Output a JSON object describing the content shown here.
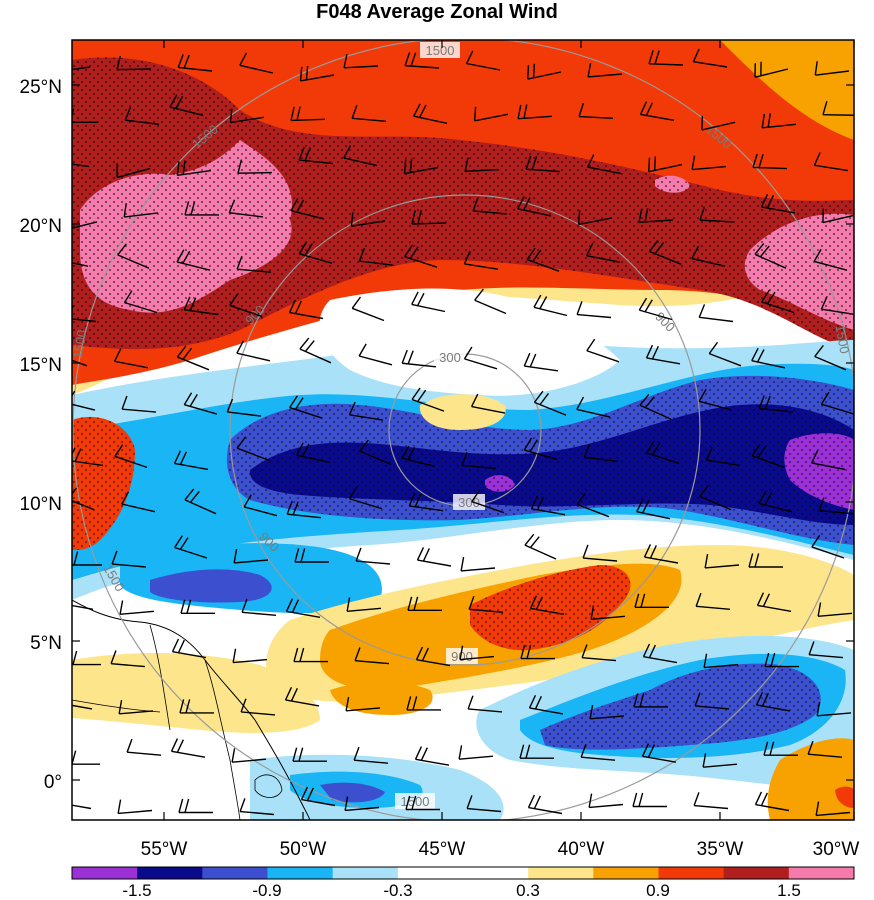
{
  "title": "F048 Average Zonal Wind",
  "colors": {
    "ring": "#9a9a9a",
    "barb": "#000000",
    "coast": "#000000",
    "levels": [
      "#9b30d6",
      "#0a0a8c",
      "#3c4fcf",
      "#19b5f5",
      "#a9e2f8",
      "#ffffff",
      "#ffffff",
      "#fde58c",
      "#f7a200",
      "#f23a08",
      "#b01e1e",
      "#f47bac"
    ]
  },
  "map": {
    "lon_ticks": [
      "55°W",
      "50°W",
      "45°W",
      "40°W",
      "35°W",
      "30°W"
    ],
    "lat_ticks": [
      "25°N",
      "20°N",
      "15°N",
      "10°N",
      "5°N",
      "0°"
    ],
    "range_rings": [
      {
        "label": "300"
      },
      {
        "label": "300"
      },
      {
        "label": "900"
      },
      {
        "label": "900"
      },
      {
        "label": "900"
      },
      {
        "label": "900"
      },
      {
        "label": "1500"
      },
      {
        "label": "1500"
      },
      {
        "label": "1500"
      },
      {
        "label": "1500"
      },
      {
        "label": "1500"
      },
      {
        "label": "1500"
      },
      {
        "label": "1500"
      }
    ]
  },
  "colorbar": {
    "labels": [
      "-1.5",
      "-0.9",
      "-0.3",
      "0.3",
      "0.9",
      "1.5"
    ]
  }
}
